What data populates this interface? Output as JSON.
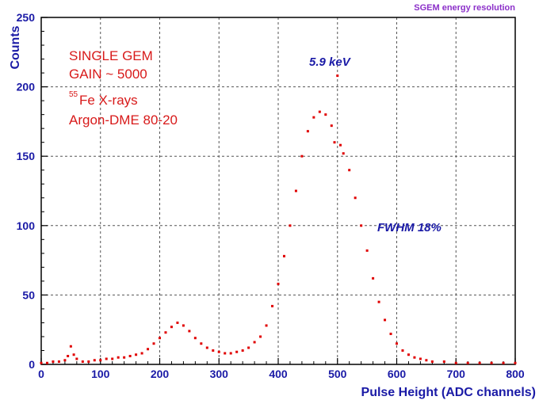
{
  "header": {
    "title": "SGEM energy resolution"
  },
  "chart_data": {
    "type": "scatter",
    "xlabel": "Pulse Height (ADC  channels)",
    "ylabel": "Counts",
    "xlim": [
      0,
      800
    ],
    "ylim": [
      0,
      250
    ],
    "x_ticks": [
      "0",
      "100",
      "200",
      "300",
      "400",
      "500",
      "600",
      "700",
      "800"
    ],
    "y_ticks": [
      "0",
      "50",
      "100",
      "150",
      "200",
      "250"
    ],
    "grid": "dashed",
    "annotations": {
      "info_lines": [
        "SINGLE GEM",
        "GAIN ~ 5000",
        "Fe X-rays",
        "Argon-DME 80-20"
      ],
      "isotope_mass": "55",
      "peak_label": "5.9 keV",
      "fwhm_label": "FWHM 18%"
    },
    "series": [
      {
        "color": "#e00000",
        "x": [
          0,
          10,
          20,
          30,
          40,
          45,
          50,
          55,
          60,
          70,
          80,
          90,
          100,
          110,
          120,
          130,
          140,
          150,
          160,
          170,
          180,
          190,
          200,
          210,
          220,
          230,
          240,
          250,
          260,
          270,
          280,
          290,
          300,
          310,
          320,
          330,
          340,
          350,
          360,
          370,
          380,
          390,
          400,
          410,
          420,
          430,
          440,
          450,
          460,
          470,
          480,
          490,
          495,
          500,
          505,
          510,
          520,
          530,
          540,
          550,
          560,
          570,
          580,
          590,
          600,
          610,
          620,
          630,
          640,
          650,
          660,
          680,
          700,
          720,
          740,
          760,
          780,
          800
        ],
        "y": [
          1,
          1,
          2,
          2,
          3,
          6,
          13,
          7,
          4,
          2,
          2,
          3,
          3,
          4,
          4,
          5,
          5,
          6,
          7,
          8,
          11,
          15,
          19,
          23,
          27,
          30,
          28,
          24,
          19,
          15,
          12,
          10,
          9,
          8,
          8,
          9,
          10,
          12,
          16,
          20,
          28,
          42,
          58,
          78,
          100,
          125,
          150,
          168,
          178,
          182,
          180,
          172,
          160,
          208,
          158,
          152,
          140,
          120,
          100,
          82,
          62,
          45,
          32,
          22,
          15,
          10,
          7,
          5,
          4,
          3,
          2,
          2,
          1,
          1,
          1,
          1,
          1,
          1
        ]
      }
    ]
  }
}
